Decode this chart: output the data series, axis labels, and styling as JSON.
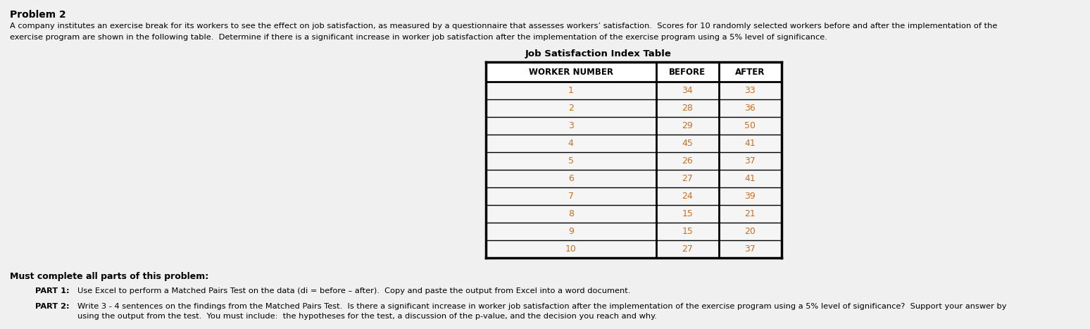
{
  "title": "Problem 2",
  "intro_line1": "A company institutes an exercise break for its workers to see the effect on job satisfaction, as measured by a questionnaire that assesses workers’ satisfaction.  Scores for 10 randomly selected workers before and after the implementation of the",
  "intro_line2": "exercise program are shown in the following table.  Determine if there is a significant increase in worker job satisfaction after the implementation of the exercise program using a 5% level of significance.",
  "table_title": "Job Satisfaction Index Table",
  "table_headers": [
    "WORKER NUMBER",
    "BEFORE",
    "AFTER"
  ],
  "table_data": [
    [
      1,
      34,
      33
    ],
    [
      2,
      28,
      36
    ],
    [
      3,
      29,
      50
    ],
    [
      4,
      45,
      41
    ],
    [
      5,
      26,
      37
    ],
    [
      6,
      27,
      41
    ],
    [
      7,
      24,
      39
    ],
    [
      8,
      15,
      21
    ],
    [
      9,
      15,
      20
    ],
    [
      10,
      27,
      37
    ]
  ],
  "must_complete": "Must complete all parts of this problem:",
  "part1_label": "PART 1:",
  "part1_text": "Use Excel to perform a Matched Pairs Test on the data (di = before – after).  Copy and paste the output from Excel into a word document.",
  "part2_label": "PART 2:",
  "part2_line1": "Write 3 - 4 sentences on the findings from the Matched Pairs Test.  Is there a significant increase in worker job satisfaction after the implementation of the exercise program using a 5% level of significance?  Support your answer by",
  "part2_line2": "using the output from the test.  You must include:  the hypotheses for the test, a discussion of the p-value, and the decision you reach and why.",
  "bg_color": "#f0f0f0",
  "text_color": "#000000",
  "header_bg": "#ffffff",
  "cell_bg": "#f5f5f5",
  "data_number_color": "#c87020",
  "header_text_color": "#000000"
}
